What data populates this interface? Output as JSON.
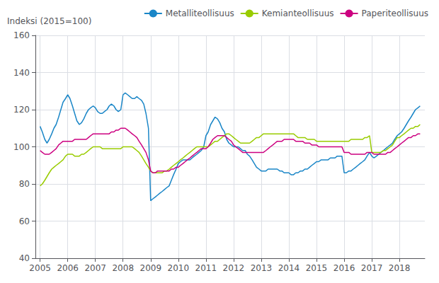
{
  "chart_data": {
    "type": "line",
    "y_label": "Indeksi (2015=100)",
    "xlim": [
      2004.83,
      2018.92
    ],
    "xticks": [
      2005,
      2006,
      2007,
      2008,
      2009,
      2010,
      2011,
      2012,
      2013,
      2014,
      2015,
      2016,
      2017,
      2018
    ],
    "ylim": [
      40,
      160
    ],
    "yticks": [
      40,
      60,
      80,
      100,
      120,
      140,
      160
    ],
    "grid": true,
    "legend": "upper right",
    "x": [
      2005.0,
      2005.08,
      2005.17,
      2005.25,
      2005.33,
      2005.42,
      2005.5,
      2005.58,
      2005.67,
      2005.75,
      2005.83,
      2005.92,
      2006.0,
      2006.08,
      2006.17,
      2006.25,
      2006.33,
      2006.42,
      2006.5,
      2006.58,
      2006.67,
      2006.75,
      2006.83,
      2006.92,
      2007.0,
      2007.08,
      2007.17,
      2007.25,
      2007.33,
      2007.42,
      2007.5,
      2007.58,
      2007.67,
      2007.75,
      2007.83,
      2007.92,
      2008.0,
      2008.08,
      2008.17,
      2008.25,
      2008.33,
      2008.42,
      2008.5,
      2008.58,
      2008.67,
      2008.75,
      2008.83,
      2008.92,
      2009.0,
      2009.08,
      2009.17,
      2009.25,
      2009.33,
      2009.42,
      2009.5,
      2009.58,
      2009.67,
      2009.75,
      2009.83,
      2009.92,
      2010.0,
      2010.08,
      2010.17,
      2010.25,
      2010.33,
      2010.42,
      2010.5,
      2010.58,
      2010.67,
      2010.75,
      2010.83,
      2010.92,
      2011.0,
      2011.08,
      2011.17,
      2011.25,
      2011.33,
      2011.42,
      2011.5,
      2011.58,
      2011.67,
      2011.75,
      2011.83,
      2011.92,
      2012.0,
      2012.08,
      2012.17,
      2012.25,
      2012.33,
      2012.42,
      2012.5,
      2012.58,
      2012.67,
      2012.75,
      2012.83,
      2012.92,
      2013.0,
      2013.08,
      2013.17,
      2013.25,
      2013.33,
      2013.42,
      2013.5,
      2013.58,
      2013.67,
      2013.75,
      2013.83,
      2013.92,
      2014.0,
      2014.08,
      2014.17,
      2014.25,
      2014.33,
      2014.42,
      2014.5,
      2014.58,
      2014.67,
      2014.75,
      2014.83,
      2014.92,
      2015.0,
      2015.08,
      2015.17,
      2015.25,
      2015.33,
      2015.42,
      2015.5,
      2015.58,
      2015.67,
      2015.75,
      2015.83,
      2015.92,
      2016.0,
      2016.08,
      2016.17,
      2016.25,
      2016.33,
      2016.42,
      2016.5,
      2016.58,
      2016.67,
      2016.75,
      2016.83,
      2016.92,
      2017.0,
      2017.08,
      2017.17,
      2017.25,
      2017.33,
      2017.42,
      2017.5,
      2017.58,
      2017.67,
      2017.75,
      2017.83,
      2017.92,
      2018.0,
      2018.08,
      2018.17,
      2018.25,
      2018.33,
      2018.42,
      2018.5,
      2018.58,
      2018.67,
      2018.75
    ],
    "series": [
      {
        "name": "Metalliteollisuus",
        "color": "#1a86c7",
        "values": [
          111,
          108,
          104,
          102,
          104,
          107,
          110,
          112,
          116,
          120,
          124,
          126,
          128,
          126,
          122,
          118,
          114,
          112,
          113,
          115,
          118,
          120,
          121,
          122,
          121,
          119,
          118,
          118,
          119,
          120,
          122,
          123,
          122,
          120,
          119,
          120,
          128,
          129,
          128,
          127,
          126,
          126,
          127,
          126,
          125,
          123,
          118,
          110,
          71,
          72,
          73,
          74,
          75,
          76,
          77,
          78,
          79,
          82,
          85,
          88,
          91,
          92,
          93,
          93,
          93,
          93,
          94,
          95,
          96,
          97,
          98,
          100,
          106,
          108,
          112,
          114,
          116,
          115,
          113,
          110,
          108,
          104,
          102,
          101,
          100,
          100,
          100,
          99,
          98,
          98,
          96,
          95,
          93,
          91,
          89,
          88,
          87,
          87,
          87,
          88,
          88,
          88,
          88,
          88,
          87,
          87,
          86,
          86,
          86,
          85,
          85,
          86,
          86,
          87,
          87,
          88,
          88,
          89,
          90,
          91,
          92,
          92,
          93,
          93,
          93,
          93,
          94,
          94,
          94,
          95,
          95,
          95,
          86,
          86,
          87,
          87,
          88,
          89,
          90,
          91,
          92,
          93,
          95,
          97,
          95,
          94,
          95,
          96,
          97,
          98,
          99,
          100,
          101,
          102,
          104,
          106,
          107,
          108,
          110,
          112,
          114,
          116,
          118,
          120,
          121,
          122
        ]
      },
      {
        "name": "Kemianteollisuus",
        "color": "#99cc00",
        "values": [
          79,
          80,
          82,
          84,
          86,
          88,
          89,
          90,
          91,
          92,
          93,
          95,
          96,
          96,
          96,
          95,
          95,
          95,
          96,
          96,
          97,
          98,
          99,
          100,
          100,
          100,
          100,
          99,
          99,
          99,
          99,
          99,
          99,
          99,
          99,
          99,
          100,
          100,
          100,
          100,
          100,
          99,
          98,
          97,
          95,
          93,
          91,
          89,
          87,
          86,
          86,
          86,
          86,
          86,
          87,
          87,
          88,
          89,
          90,
          91,
          92,
          93,
          94,
          95,
          96,
          97,
          98,
          99,
          100,
          100,
          100,
          100,
          100,
          100,
          101,
          102,
          103,
          103,
          104,
          105,
          106,
          107,
          107,
          106,
          105,
          104,
          103,
          102,
          102,
          102,
          102,
          102,
          103,
          104,
          105,
          105,
          106,
          107,
          107,
          107,
          107,
          107,
          107,
          107,
          107,
          107,
          107,
          107,
          107,
          107,
          107,
          106,
          105,
          105,
          105,
          105,
          104,
          104,
          104,
          104,
          103,
          103,
          103,
          103,
          103,
          103,
          103,
          103,
          103,
          103,
          103,
          103,
          103,
          103,
          103,
          104,
          104,
          104,
          104,
          104,
          104,
          105,
          105,
          106,
          97,
          97,
          97,
          97,
          97,
          98,
          98,
          99,
          100,
          101,
          103,
          105,
          105,
          106,
          107,
          108,
          109,
          110,
          110,
          111,
          111,
          112
        ]
      },
      {
        "name": "Paperiteollisuus",
        "color": "#cc0080",
        "values": [
          98,
          97,
          96,
          96,
          96,
          97,
          98,
          99,
          101,
          102,
          103,
          103,
          103,
          103,
          103,
          104,
          104,
          104,
          104,
          104,
          104,
          105,
          106,
          107,
          107,
          107,
          107,
          107,
          107,
          107,
          107,
          108,
          108,
          109,
          109,
          110,
          110,
          110,
          109,
          108,
          107,
          106,
          105,
          103,
          101,
          99,
          97,
          93,
          87,
          86,
          86,
          87,
          87,
          87,
          87,
          87,
          87,
          88,
          88,
          89,
          89,
          90,
          91,
          92,
          93,
          94,
          95,
          96,
          97,
          98,
          99,
          99,
          99,
          100,
          102,
          104,
          105,
          106,
          106,
          106,
          106,
          105,
          104,
          103,
          101,
          100,
          99,
          98,
          97,
          97,
          97,
          97,
          97,
          97,
          97,
          97,
          97,
          97,
          98,
          99,
          100,
          101,
          102,
          103,
          103,
          103,
          104,
          104,
          104,
          104,
          104,
          103,
          103,
          103,
          103,
          102,
          102,
          102,
          101,
          101,
          101,
          100,
          100,
          100,
          100,
          100,
          100,
          100,
          100,
          100,
          100,
          100,
          97,
          97,
          97,
          96,
          96,
          96,
          96,
          96,
          96,
          96,
          97,
          97,
          97,
          96,
          96,
          96,
          96,
          96,
          96,
          97,
          97,
          98,
          99,
          100,
          101,
          102,
          103,
          104,
          105,
          105,
          106,
          106,
          107,
          107
        ]
      }
    ]
  }
}
